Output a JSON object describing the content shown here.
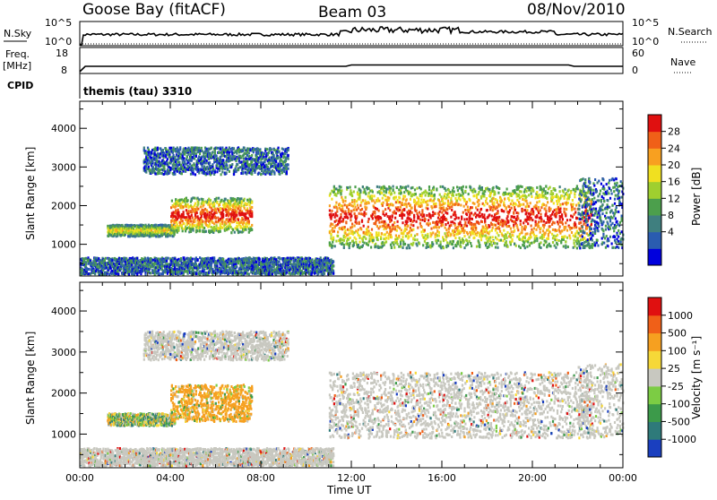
{
  "header": {
    "station": "Goose Bay (fitACF)",
    "beam": "Beam 03",
    "date": "08/Nov/2010"
  },
  "status_panel": {
    "left_labels": [
      "N.Sky",
      "Freq.",
      "[MHz]",
      "CPID"
    ],
    "right_labels": [
      "N.Search",
      "Nave"
    ],
    "nsky_ticks": [
      "10^5",
      "10^0"
    ],
    "freq_ticks": [
      "18",
      "8"
    ],
    "nsearch_ticks": [
      "10^5",
      "10^0"
    ],
    "nave_ticks": [
      "60",
      "0"
    ],
    "cpid_text": "themis (tau) 3310"
  },
  "chart_data": [
    {
      "type": "heatmap",
      "name": "power",
      "ylabel": "Slant Range [km]",
      "ylim": [
        180,
        4700
      ],
      "y_ticks": [
        "4000",
        "3000",
        "2000",
        "1000"
      ],
      "x_ticks": [
        "00:00",
        "04:00",
        "08:00",
        "12:00",
        "16:00",
        "20:00",
        "00:00"
      ],
      "colorbar": {
        "label": "Power [dB]",
        "ticks": [
          "28",
          "24",
          "20",
          "16",
          "12",
          "8",
          "4"
        ],
        "colors": [
          "#0000dd",
          "#2a5cb0",
          "#3f7f7f",
          "#4c9f4c",
          "#9fcf2f",
          "#f0e020",
          "#f8a020",
          "#f06018",
          "#e01010"
        ]
      },
      "echo_regions": [
        {
          "t_start": 0.0,
          "t_end": 11.2,
          "r_low": 220,
          "r_high": 650,
          "level": "low"
        },
        {
          "t_start": 1.2,
          "t_end": 4.2,
          "r_low": 1200,
          "r_high": 1500,
          "level": "mid"
        },
        {
          "t_start": 4.0,
          "t_end": 7.6,
          "r_low": 1300,
          "r_high": 2200,
          "level": "high"
        },
        {
          "t_start": 2.8,
          "t_end": 9.2,
          "r_low": 2800,
          "r_high": 3500,
          "level": "low"
        },
        {
          "t_start": 11.0,
          "t_end": 22.6,
          "r_low": 900,
          "r_high": 2500,
          "level": "high"
        },
        {
          "t_start": 22.0,
          "t_end": 24.0,
          "r_low": 900,
          "r_high": 2700,
          "level": "low"
        }
      ]
    },
    {
      "type": "heatmap",
      "name": "velocity",
      "ylabel": "Slant Range [km]",
      "ylim": [
        180,
        4700
      ],
      "y_ticks": [
        "4000",
        "3000",
        "2000",
        "1000"
      ],
      "x_ticks": [
        "00:00",
        "04:00",
        "08:00",
        "12:00",
        "16:00",
        "20:00",
        "00:00"
      ],
      "xlabel": "Time UT",
      "colorbar": {
        "label": "Velocity [m s⁻¹]",
        "ticks": [
          "1000",
          "500",
          "100",
          "25",
          "-25",
          "-100",
          "-500",
          "-1000"
        ],
        "colors": [
          "#1a3fbf",
          "#2e7a7a",
          "#3c9a4a",
          "#7ccc44",
          "#c8c8c0",
          "#f6d838",
          "#f6a020",
          "#f06018",
          "#e01010"
        ]
      },
      "echo_regions": [
        {
          "t_start": 0.0,
          "t_end": 11.2,
          "r_low": 220,
          "r_high": 650,
          "level": "ground"
        },
        {
          "t_start": 1.2,
          "t_end": 4.2,
          "r_low": 1200,
          "r_high": 1500,
          "level": "mixed"
        },
        {
          "t_start": 4.0,
          "t_end": 7.6,
          "r_low": 1300,
          "r_high": 2200,
          "level": "away"
        },
        {
          "t_start": 2.8,
          "t_end": 9.2,
          "r_low": 2800,
          "r_high": 3500,
          "level": "ground"
        },
        {
          "t_start": 11.0,
          "t_end": 22.6,
          "r_low": 900,
          "r_high": 2500,
          "level": "ground"
        },
        {
          "t_start": 22.0,
          "t_end": 24.0,
          "r_low": 900,
          "r_high": 2700,
          "level": "ground"
        }
      ]
    }
  ]
}
